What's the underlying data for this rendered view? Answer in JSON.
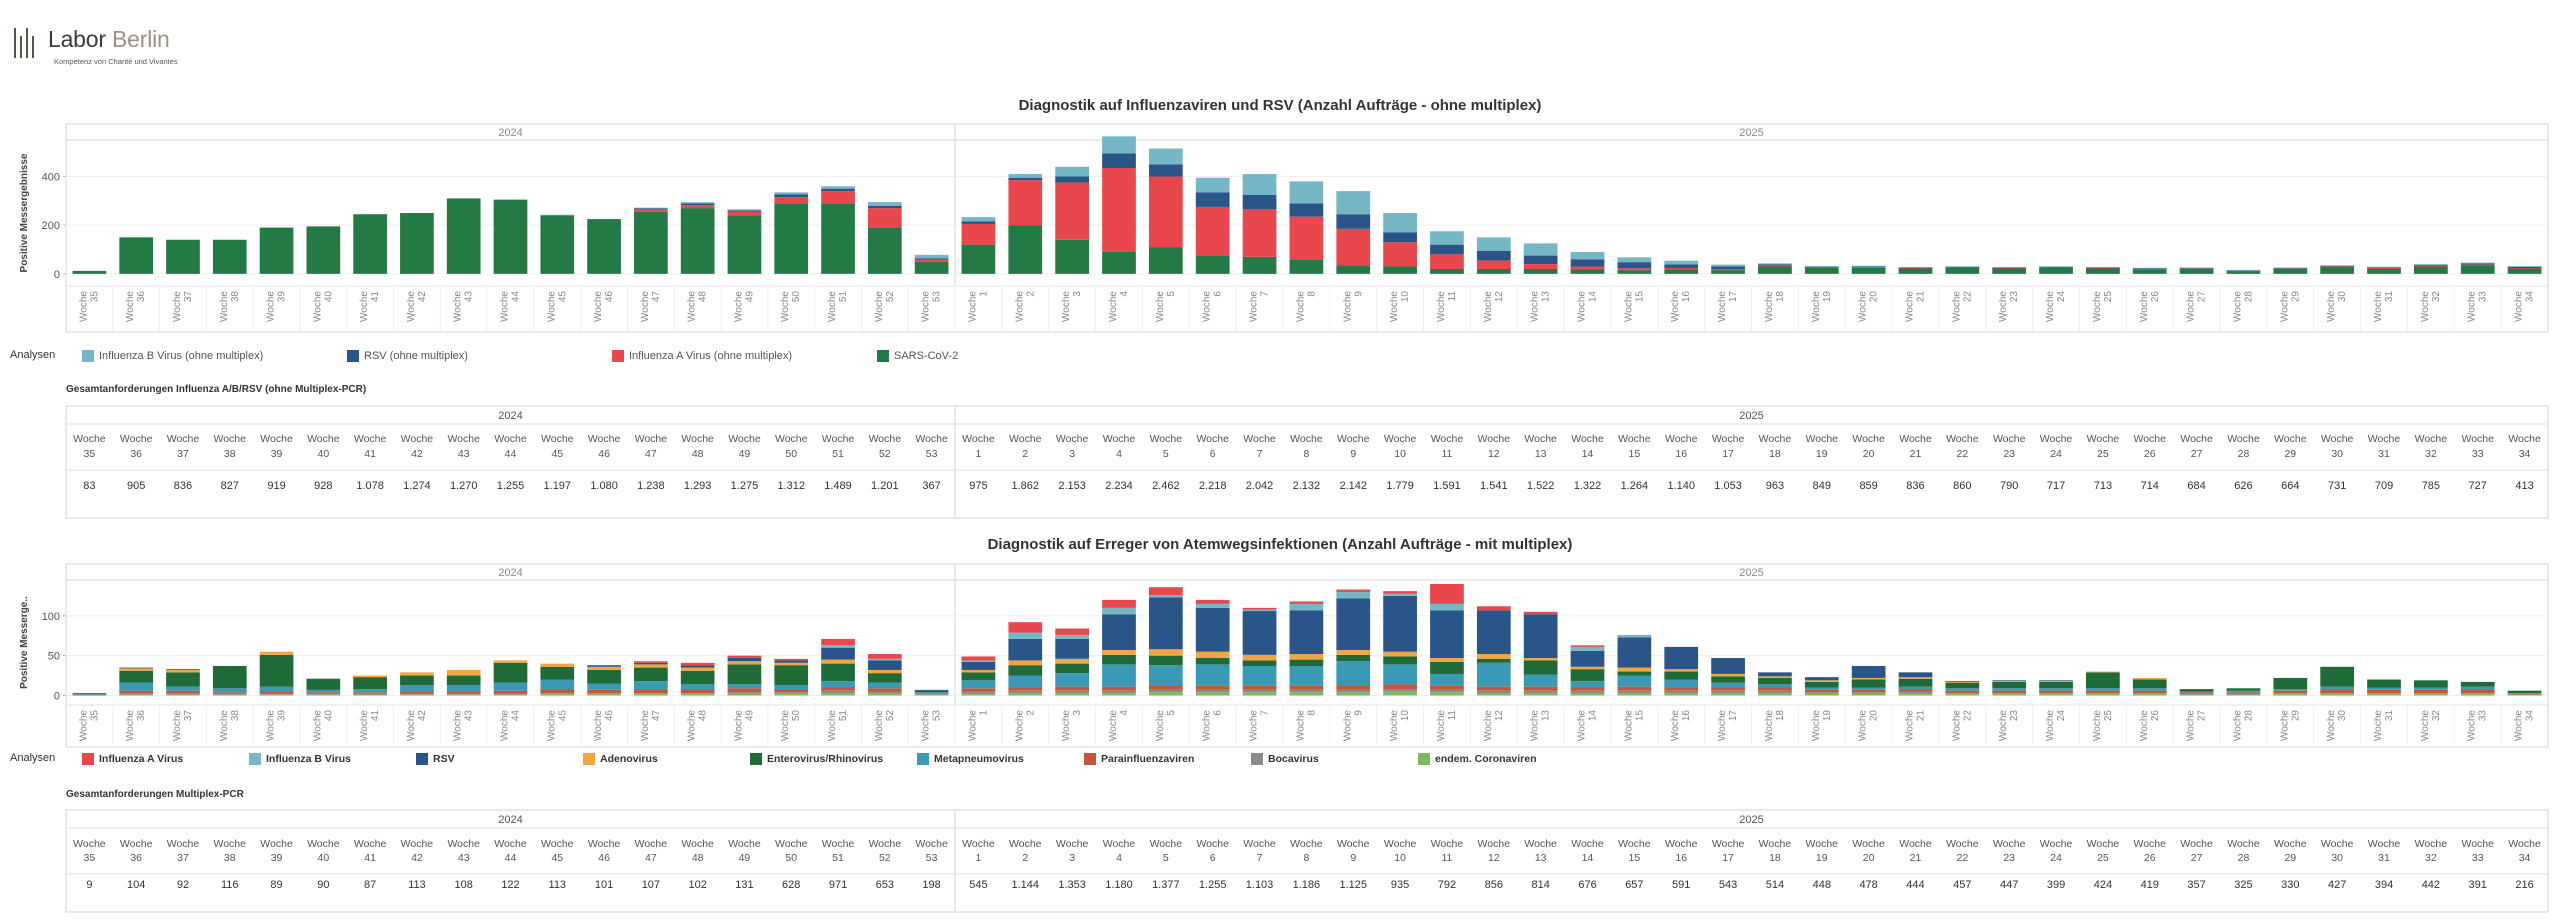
{
  "logo": {
    "name_a": "Labor",
    "name_b": "Berlin",
    "tagline": "Kompetenz von Charité und Vivantes"
  },
  "weeks_label": "Woche",
  "years": [
    "2024",
    "2025"
  ],
  "weeks_2024": [
    "35",
    "36",
    "37",
    "38",
    "39",
    "40",
    "41",
    "42",
    "43",
    "44",
    "45",
    "46",
    "47",
    "48",
    "49",
    "50",
    "51",
    "52",
    "53"
  ],
  "weeks_2025": [
    "1",
    "2",
    "3",
    "4",
    "5",
    "6",
    "7",
    "8",
    "9",
    "10",
    "11",
    "12",
    "13",
    "14",
    "15",
    "16",
    "17",
    "18",
    "19",
    "20",
    "21",
    "22",
    "23",
    "24",
    "25",
    "26",
    "27",
    "28",
    "29",
    "30",
    "31",
    "32",
    "33",
    "34"
  ],
  "section1": {
    "title": "Diagnostik auf Influenzaviren und RSV (Anzahl Aufträge - ohne multiplex)",
    "table_title": "Gesamtanforderungen Influenza A/B/RSV (ohne Multiplex-PCR)"
  },
  "section2": {
    "title": "Diagnostik auf Erreger von Atemwegsinfektionen (Anzahl Aufträge - mit multiplex)",
    "table_title": "Gesamtanforderungen Multiplex-PCR"
  },
  "legend1": {
    "header": "Analysen",
    "items": [
      {
        "label": "Influenza B Virus (ohne multiplex)",
        "color": "#76b7c5"
      },
      {
        "label": "RSV (ohne multiplex)",
        "color": "#2a5588"
      },
      {
        "label": "Influenza A Virus (ohne multiplex)",
        "color": "#e8484d"
      },
      {
        "label": "SARS-CoV-2",
        "color": "#237a45"
      }
    ]
  },
  "legend2": {
    "header": "Analysen",
    "items": [
      {
        "label": "Influenza A Virus",
        "color": "#e8484d"
      },
      {
        "label": "Influenza B Virus",
        "color": "#76b7c5"
      },
      {
        "label": "RSV",
        "color": "#2a5588"
      },
      {
        "label": "Adenovirus",
        "color": "#f2a541"
      },
      {
        "label": "Enterovirus/Rhinovirus",
        "color": "#1e6b37"
      },
      {
        "label": "Metapneumovirus",
        "color": "#3a9ab5"
      },
      {
        "label": "Parainfluenzaviren",
        "color": "#c4563a"
      },
      {
        "label": "Bocavirus",
        "color": "#8a8a8a"
      },
      {
        "label": "endem. Coronaviren",
        "color": "#7fb85a"
      }
    ]
  },
  "table1_values": [
    "83",
    "905",
    "836",
    "827",
    "919",
    "928",
    "1.078",
    "1.274",
    "1.270",
    "1.255",
    "1.197",
    "1.080",
    "1.238",
    "1.293",
    "1.275",
    "1.312",
    "1.489",
    "1.201",
    "367",
    "975",
    "1.862",
    "2.153",
    "2.234",
    "2.462",
    "2.218",
    "2.042",
    "2.132",
    "2.142",
    "1.779",
    "1.591",
    "1.541",
    "1.522",
    "1.322",
    "1.264",
    "1.140",
    "1.053",
    "963",
    "849",
    "859",
    "836",
    "860",
    "790",
    "717",
    "713",
    "714",
    "684",
    "626",
    "664",
    "731",
    "709",
    "785",
    "727",
    "413"
  ],
  "table2_values": [
    "9",
    "104",
    "92",
    "116",
    "89",
    "90",
    "87",
    "113",
    "108",
    "122",
    "113",
    "101",
    "107",
    "102",
    "131",
    "628",
    "971",
    "653",
    "198",
    "545",
    "1.144",
    "1.353",
    "1.180",
    "1.377",
    "1.255",
    "1.103",
    "1.186",
    "1.125",
    "935",
    "792",
    "856",
    "814",
    "676",
    "657",
    "591",
    "543",
    "514",
    "448",
    "478",
    "444",
    "457",
    "447",
    "399",
    "424",
    "419",
    "357",
    "325",
    "330",
    "427",
    "394",
    "442",
    "391",
    "216"
  ],
  "chart_data": [
    {
      "type": "bar",
      "stacked": true,
      "ylabel": "Positive Messergebnisse",
      "yticks": [
        0,
        200,
        400
      ],
      "ylim": [
        -50,
        550
      ],
      "grid": true,
      "series_names": [
        "SARS-CoV-2",
        "Influenza A Virus (ohne multiplex)",
        "RSV (ohne multiplex)",
        "Influenza B Virus (ohne multiplex)"
      ],
      "series_colors": [
        "#237a45",
        "#e8484d",
        "#2a5588",
        "#76b7c5"
      ],
      "values": [
        [
          12,
          0,
          0,
          0
        ],
        [
          150,
          0,
          0,
          0
        ],
        [
          140,
          0,
          0,
          0
        ],
        [
          140,
          0,
          0,
          0
        ],
        [
          190,
          0,
          0,
          0
        ],
        [
          195,
          0,
          0,
          0
        ],
        [
          245,
          0,
          0,
          0
        ],
        [
          250,
          0,
          0,
          0
        ],
        [
          310,
          0,
          0,
          0
        ],
        [
          305,
          0,
          0,
          0
        ],
        [
          240,
          0,
          0,
          3
        ],
        [
          225,
          0,
          0,
          0
        ],
        [
          255,
          10,
          5,
          2
        ],
        [
          270,
          12,
          8,
          4
        ],
        [
          240,
          15,
          6,
          4
        ],
        [
          290,
          25,
          12,
          8
        ],
        [
          290,
          50,
          10,
          10
        ],
        [
          190,
          80,
          10,
          15
        ],
        [
          50,
          8,
          5,
          15
        ],
        [
          120,
          85,
          10,
          18
        ],
        [
          200,
          185,
          10,
          15
        ],
        [
          140,
          235,
          25,
          40
        ],
        [
          90,
          345,
          60,
          70
        ],
        [
          110,
          290,
          50,
          65
        ],
        [
          75,
          200,
          60,
          60
        ],
        [
          70,
          195,
          60,
          85
        ],
        [
          60,
          175,
          55,
          90
        ],
        [
          35,
          150,
          60,
          95
        ],
        [
          30,
          100,
          40,
          80
        ],
        [
          20,
          60,
          40,
          55
        ],
        [
          20,
          35,
          40,
          55
        ],
        [
          20,
          20,
          35,
          50
        ],
        [
          18,
          12,
          30,
          30
        ],
        [
          15,
          8,
          25,
          20
        ],
        [
          18,
          6,
          15,
          15
        ],
        [
          15,
          5,
          10,
          8
        ],
        [
          30,
          4,
          5,
          4
        ],
        [
          25,
          3,
          2,
          2
        ],
        [
          25,
          3,
          3,
          2
        ],
        [
          22,
          2,
          2,
          2
        ],
        [
          25,
          2,
          2,
          2
        ],
        [
          22,
          2,
          2,
          2
        ],
        [
          25,
          2,
          2,
          2
        ],
        [
          22,
          2,
          2,
          2
        ],
        [
          18,
          2,
          3,
          2
        ],
        [
          20,
          2,
          2,
          2
        ],
        [
          10,
          2,
          2,
          2
        ],
        [
          20,
          2,
          2,
          2
        ],
        [
          28,
          2,
          3,
          2
        ],
        [
          22,
          2,
          3,
          2
        ],
        [
          30,
          3,
          4,
          3
        ],
        [
          35,
          3,
          5,
          3
        ],
        [
          22,
          2,
          5,
          3
        ]
      ]
    },
    {
      "type": "bar",
      "stacked": true,
      "ylabel": "Positive Messerge..",
      "yticks": [
        0,
        50,
        100
      ],
      "ylim": [
        -12,
        145
      ],
      "grid": true,
      "series_names": [
        "endem. Coronaviren",
        "Bocavirus",
        "Parainfluenzaviren",
        "Metapneumovirus",
        "Enterovirus/Rhinovirus",
        "Adenovirus",
        "RSV",
        "Influenza B Virus",
        "Influenza A Virus"
      ],
      "series_colors": [
        "#7fb85a",
        "#8a8a8a",
        "#c4563a",
        "#3a9ab5",
        "#1e6b37",
        "#f2a541",
        "#2a5588",
        "#76b7c5",
        "#e8484d"
      ],
      "values": [
        [
          0,
          0,
          1,
          1,
          1,
          0,
          0,
          0,
          0
        ],
        [
          1,
          2,
          3,
          10,
          15,
          3,
          1,
          0,
          0
        ],
        [
          1,
          2,
          3,
          5,
          18,
          3,
          1,
          0,
          0
        ],
        [
          1,
          1,
          2,
          5,
          28,
          0,
          0,
          0,
          0
        ],
        [
          1,
          1,
          3,
          6,
          40,
          4,
          0,
          0,
          0
        ],
        [
          1,
          1,
          2,
          3,
          14,
          0,
          0,
          0,
          0
        ],
        [
          1,
          1,
          2,
          4,
          15,
          2,
          0,
          0,
          0
        ],
        [
          1,
          1,
          3,
          8,
          12,
          4,
          0,
          0,
          0
        ],
        [
          1,
          1,
          3,
          8,
          12,
          7,
          0,
          0,
          0
        ],
        [
          1,
          1,
          4,
          10,
          25,
          3,
          0,
          0,
          0
        ],
        [
          2,
          1,
          5,
          12,
          16,
          4,
          0,
          0,
          0
        ],
        [
          2,
          1,
          4,
          8,
          17,
          4,
          2,
          0,
          0
        ],
        [
          2,
          1,
          5,
          10,
          17,
          4,
          2,
          0,
          2
        ],
        [
          2,
          1,
          5,
          6,
          17,
          4,
          3,
          0,
          3
        ],
        [
          2,
          2,
          5,
          5,
          25,
          4,
          4,
          0,
          3
        ],
        [
          2,
          2,
          4,
          5,
          25,
          3,
          3,
          0,
          2
        ],
        [
          3,
          3,
          4,
          8,
          22,
          5,
          15,
          3,
          8
        ],
        [
          3,
          2,
          4,
          7,
          12,
          4,
          12,
          2,
          6
        ],
        [
          1,
          1,
          1,
          1,
          2,
          0,
          1,
          0,
          0
        ],
        [
          2,
          3,
          4,
          10,
          10,
          3,
          10,
          2,
          5
        ],
        [
          3,
          3,
          4,
          15,
          13,
          6,
          27,
          8,
          13
        ],
        [
          3,
          3,
          5,
          17,
          12,
          6,
          25,
          5,
          8
        ],
        [
          3,
          3,
          5,
          28,
          12,
          6,
          45,
          8,
          10
        ],
        [
          4,
          3,
          6,
          25,
          12,
          8,
          65,
          3,
          10
        ],
        [
          4,
          3,
          5,
          27,
          8,
          8,
          55,
          5,
          5
        ],
        [
          4,
          3,
          5,
          25,
          7,
          7,
          55,
          2,
          2
        ],
        [
          4,
          3,
          5,
          25,
          8,
          7,
          55,
          8,
          3
        ],
        [
          4,
          3,
          6,
          30,
          8,
          6,
          65,
          8,
          3
        ],
        [
          5,
          3,
          6,
          25,
          10,
          6,
          70,
          3,
          3
        ],
        [
          4,
          3,
          5,
          15,
          15,
          5,
          60,
          8,
          25
        ],
        [
          3,
          3,
          5,
          30,
          5,
          6,
          55,
          0,
          5
        ],
        [
          3,
          3,
          5,
          15,
          18,
          3,
          55,
          0,
          3
        ],
        [
          3,
          3,
          4,
          8,
          15,
          3,
          20,
          5,
          2
        ],
        [
          3,
          3,
          5,
          14,
          5,
          5,
          38,
          3,
          0
        ],
        [
          3,
          3,
          4,
          10,
          10,
          3,
          28,
          0,
          0
        ],
        [
          3,
          3,
          4,
          6,
          8,
          3,
          20,
          0,
          0
        ],
        [
          3,
          3,
          4,
          4,
          8,
          2,
          5,
          0,
          0
        ],
        [
          2,
          2,
          3,
          3,
          7,
          2,
          4,
          0,
          0
        ],
        [
          2,
          2,
          3,
          3,
          10,
          2,
          15,
          0,
          0
        ],
        [
          3,
          2,
          3,
          3,
          10,
          2,
          6,
          0,
          0
        ],
        [
          2,
          1,
          3,
          3,
          7,
          1,
          1,
          0,
          0
        ],
        [
          2,
          1,
          3,
          3,
          8,
          1,
          1,
          0,
          0
        ],
        [
          2,
          1,
          3,
          3,
          8,
          1,
          1,
          0,
          0
        ],
        [
          2,
          1,
          3,
          3,
          20,
          1,
          0,
          0,
          0
        ],
        [
          2,
          1,
          3,
          3,
          11,
          2,
          0,
          0,
          0
        ],
        [
          1,
          1,
          2,
          1,
          3,
          0,
          0,
          0,
          0
        ],
        [
          1,
          1,
          2,
          2,
          3,
          0,
          0,
          0,
          0
        ],
        [
          2,
          1,
          3,
          2,
          14,
          0,
          0,
          0,
          0
        ],
        [
          2,
          1,
          5,
          3,
          25,
          0,
          0,
          0,
          0
        ],
        [
          2,
          1,
          4,
          3,
          10,
          0,
          0,
          0,
          0
        ],
        [
          2,
          1,
          4,
          3,
          9,
          0,
          0,
          0,
          0
        ],
        [
          2,
          1,
          5,
          3,
          6,
          0,
          0,
          0,
          0
        ],
        [
          1,
          0,
          1,
          1,
          3,
          0,
          0,
          0,
          0
        ]
      ]
    }
  ]
}
